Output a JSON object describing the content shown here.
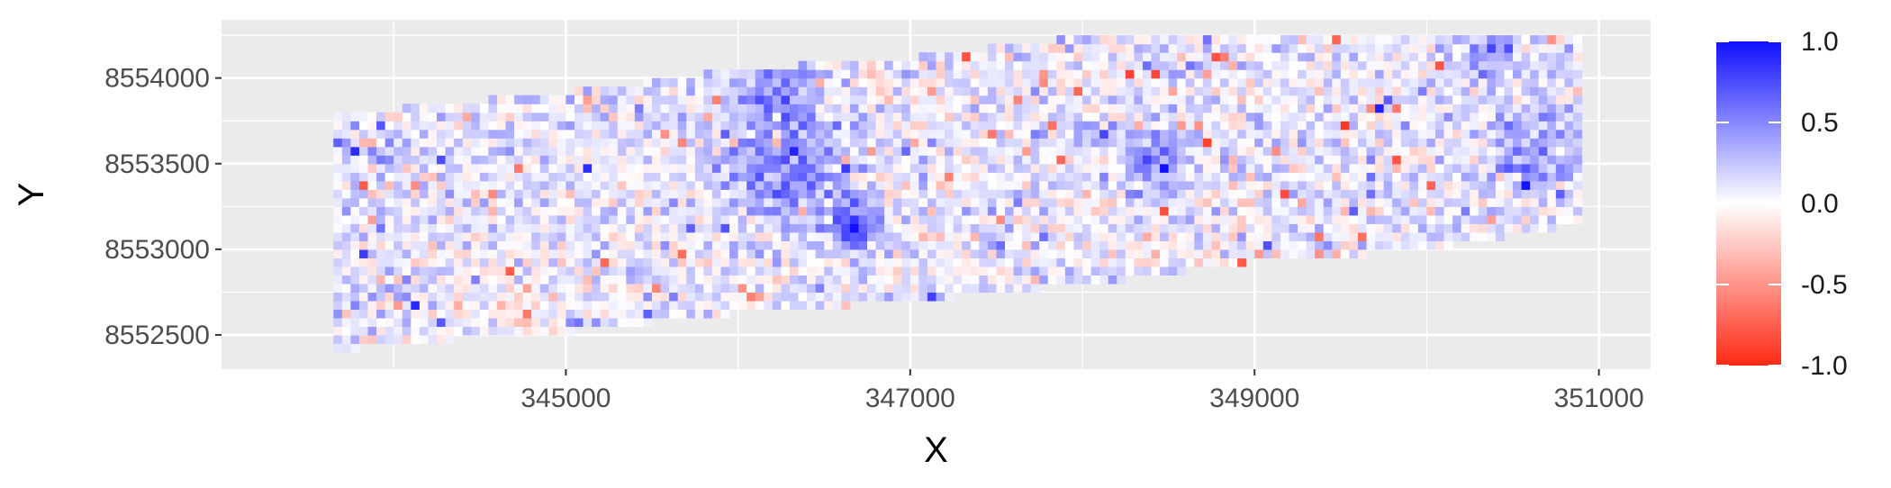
{
  "chart_data": {
    "type": "heatmap",
    "title": "",
    "xlabel": "X",
    "ylabel": "Y",
    "xlim": [
      343000,
      351300
    ],
    "ylim": [
      8552300,
      8554340
    ],
    "x_ticks": [
      {
        "value": 345000,
        "label": "345000"
      },
      {
        "value": 347000,
        "label": "347000"
      },
      {
        "value": 349000,
        "label": "349000"
      },
      {
        "value": 351000,
        "label": "351000"
      }
    ],
    "x_minor": [
      344000,
      346000,
      348000,
      350000
    ],
    "y_ticks": [
      {
        "value": 8552500,
        "label": "8552500"
      },
      {
        "value": 8553000,
        "label": "8553000"
      },
      {
        "value": 8553500,
        "label": "8553500"
      },
      {
        "value": 8554000,
        "label": "8554000"
      }
    ],
    "y_minor": [
      8552750,
      8553250,
      8553750,
      8554250
    ],
    "grid": true,
    "legend": {
      "position": "right",
      "limits": [
        -1.0,
        1.0
      ],
      "breaks": [
        {
          "value": 1.0,
          "label": "1.0"
        },
        {
          "value": 0.5,
          "label": "0.5"
        },
        {
          "value": 0.0,
          "label": "0.0"
        },
        {
          "value": -0.5,
          "label": "-0.5"
        },
        {
          "value": -1.0,
          "label": "-1.0"
        }
      ]
    },
    "colors": {
      "low": "#ff2a14",
      "mid": "#ffffff",
      "high": "#1010ff",
      "panel": "#ebebeb",
      "grid": "#ffffff"
    },
    "cell_size": [
      50,
      50
    ],
    "footprint": [
      {
        "x": 343650,
        "ylo": 8552400,
        "yhi": 8553800
      },
      {
        "x": 344000,
        "ylo": 8552450,
        "yhi": 8553820
      },
      {
        "x": 345000,
        "ylo": 8552520,
        "yhi": 8553920
      },
      {
        "x": 345700,
        "ylo": 8552600,
        "yhi": 8554010
      },
      {
        "x": 346000,
        "ylo": 8552630,
        "yhi": 8554050
      },
      {
        "x": 347000,
        "ylo": 8552700,
        "yhi": 8554120
      },
      {
        "x": 347800,
        "ylo": 8552780,
        "yhi": 8554220
      },
      {
        "x": 348000,
        "ylo": 8552790,
        "yhi": 8554240
      },
      {
        "x": 349000,
        "ylo": 8552930,
        "yhi": 8554260
      },
      {
        "x": 350000,
        "ylo": 8553000,
        "yhi": 8554260
      },
      {
        "x": 350900,
        "ylo": 8553150,
        "yhi": 8554260
      }
    ],
    "anomalies": [
      {
        "x": 346250,
        "y": 8553450,
        "radius": 300,
        "value": 0.5
      },
      {
        "x": 346650,
        "y": 8553120,
        "radius": 150,
        "value": 0.7
      },
      {
        "x": 346200,
        "y": 8553920,
        "radius": 200,
        "value": 0.45
      },
      {
        "x": 348400,
        "y": 8553500,
        "radius": 250,
        "value": 0.35
      },
      {
        "x": 350600,
        "y": 8553550,
        "radius": 250,
        "value": 0.3
      },
      {
        "x": 350300,
        "y": 8554150,
        "radius": 200,
        "value": 0.3
      },
      {
        "x": 344600,
        "y": 8552700,
        "radius": 300,
        "value": -0.15
      },
      {
        "x": 348800,
        "y": 8553050,
        "radius": 200,
        "value": -0.1
      }
    ]
  }
}
